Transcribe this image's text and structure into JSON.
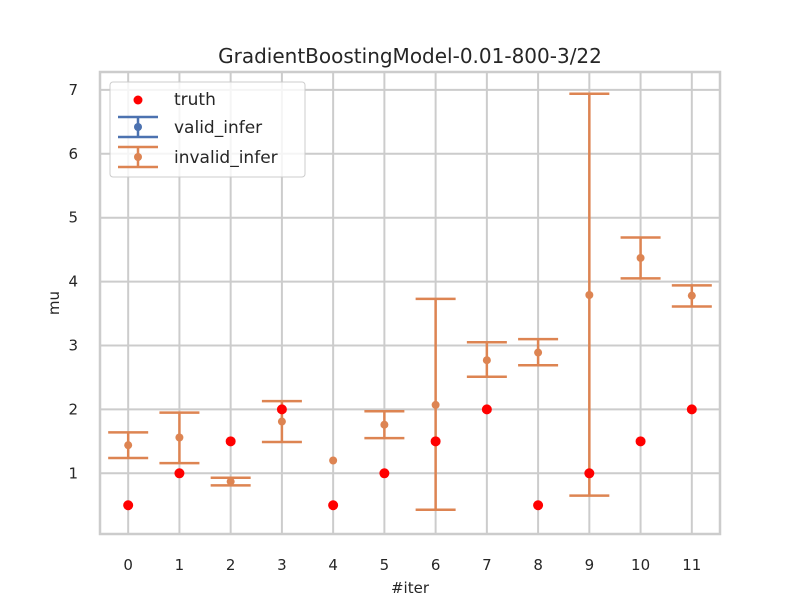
{
  "chart_data": {
    "type": "scatter",
    "title": "GradientBoostingModel-0.01-800-3/22",
    "xlabel": "#iter",
    "ylabel": "mu",
    "xlim": [
      -0.55,
      11.55
    ],
    "ylim": [
      0.05,
      7.28
    ],
    "grid": true,
    "legend_position": "top-left",
    "x_ticks": [
      0,
      1,
      2,
      3,
      4,
      5,
      6,
      7,
      8,
      9,
      10,
      11
    ],
    "y_ticks": [
      1,
      2,
      3,
      4,
      5,
      6,
      7
    ],
    "legend": [
      "truth",
      "valid_infer",
      "invalid_infer"
    ],
    "colors": {
      "truth": "#ff0000",
      "valid_infer": "#4c72b0",
      "invalid_infer": "#dd8452",
      "grid": "#cccccc"
    },
    "truth": {
      "x": [
        0,
        1,
        2,
        3,
        4,
        5,
        6,
        7,
        8,
        9,
        10,
        11
      ],
      "y": [
        0.5,
        1.0,
        1.5,
        2.0,
        0.5,
        1.0,
        1.5,
        2.0,
        0.5,
        1.0,
        1.5,
        2.0
      ]
    },
    "valid_infer": {
      "x": [],
      "y": [],
      "lower": [],
      "upper": []
    },
    "invalid_infer": {
      "x": [
        0,
        1,
        2,
        3,
        4,
        5,
        6,
        7,
        8,
        9,
        10,
        11
      ],
      "y": [
        1.44,
        1.56,
        0.87,
        1.81,
        1.2,
        1.76,
        2.07,
        2.77,
        2.89,
        3.79,
        4.37,
        3.78
      ],
      "lower": [
        1.24,
        1.16,
        0.81,
        1.49,
        1.2,
        1.55,
        0.43,
        2.51,
        2.69,
        0.65,
        4.05,
        3.61
      ],
      "upper": [
        1.64,
        1.95,
        0.93,
        2.13,
        1.2,
        1.97,
        3.73,
        3.05,
        3.1,
        6.94,
        4.69,
        3.94
      ]
    }
  }
}
